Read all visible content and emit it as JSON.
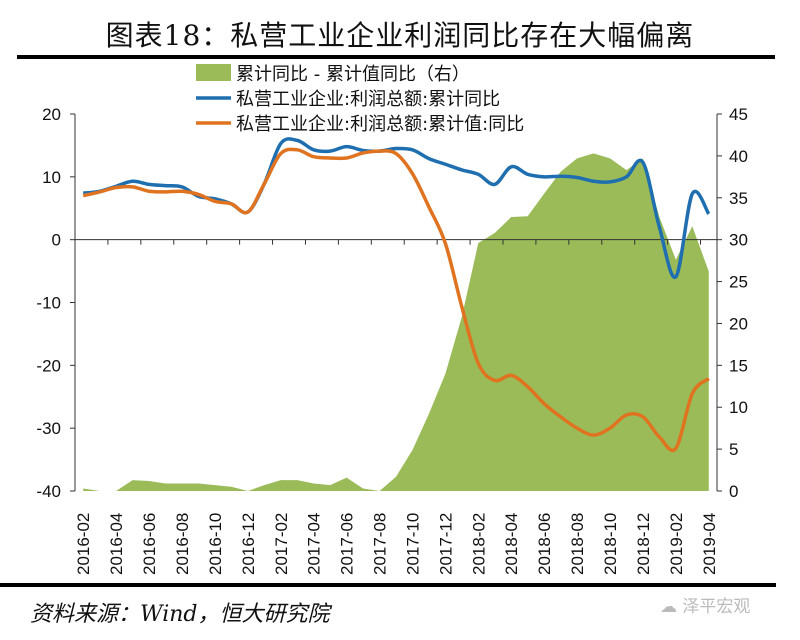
{
  "title": "图表18：私营工业企业利润同比存在大幅偏离",
  "source": "资料来源：Wind，恒大研究院",
  "watermark": "泽平宏观",
  "chart_data": {
    "type": "line",
    "title": "图表18：私营工业企业利润同比存在大幅偏离",
    "x_tick_labels": [
      "2016-02",
      "2016-04",
      "2016-06",
      "2016-08",
      "2016-10",
      "2016-12",
      "2017-02",
      "2017-04",
      "2017-06",
      "2017-08",
      "2017-10",
      "2017-12",
      "2018-02",
      "2018-04",
      "2018-06",
      "2018-08",
      "2018-10",
      "2018-12",
      "2019-02",
      "2019-04"
    ],
    "n_points": 39,
    "y_left": {
      "lim": [
        -40,
        20
      ],
      "ticks": [
        20,
        10,
        0,
        -10,
        -20,
        -30,
        -40
      ]
    },
    "y_right": {
      "lim": [
        0,
        45
      ],
      "ticks": [
        45,
        40,
        35,
        30,
        25,
        20,
        15,
        10,
        5,
        0
      ]
    },
    "colors": {
      "area": "#9bbb59",
      "blue": "#1f6fb0",
      "orange": "#e0731f"
    },
    "series": [
      {
        "name": "累计同比 - 累计值同比（右）",
        "type": "area",
        "axis": "right",
        "values": [
          0.3,
          0,
          0,
          1.3,
          1.2,
          0.9,
          0.9,
          0.9,
          0.7,
          0.5,
          0,
          0.7,
          1.3,
          1.3,
          0.9,
          0.7,
          1.6,
          0.3,
          0,
          1.7,
          4.9,
          9.2,
          14.0,
          20.8,
          29.6,
          30.8,
          32.7,
          32.8,
          35.5,
          38.1,
          39.7,
          40.3,
          39.7,
          38.3,
          39.7,
          32.7,
          27.6,
          31.6,
          26.2
        ]
      },
      {
        "name": "私营工业企业:利润总额:累计同比",
        "type": "line",
        "axis": "left",
        "values": [
          7.4,
          7.7,
          8.5,
          9.3,
          8.8,
          8.6,
          8.4,
          6.9,
          6.5,
          5.7,
          4.4,
          8.9,
          15.3,
          15.8,
          14.3,
          14.1,
          14.8,
          14.2,
          14.1,
          14.5,
          14.3,
          12.9,
          12.0,
          11.1,
          10.4,
          8.8,
          11.6,
          10.4,
          10.0,
          10.1,
          9.9,
          9.3,
          9.2,
          10.0,
          12.3,
          2.0,
          -5.9,
          7.3,
          4.1
        ]
      },
      {
        "name": "私营工业企业:利润总额:累计值:同比",
        "type": "line",
        "axis": "left",
        "values": [
          7.0,
          7.6,
          8.3,
          8.4,
          7.7,
          7.6,
          7.7,
          7.2,
          6.1,
          5.7,
          4.4,
          8.9,
          13.7,
          14.3,
          13.2,
          13.0,
          13.0,
          13.8,
          14.1,
          13.7,
          10.5,
          5.2,
          -0.6,
          -10.7,
          -19.7,
          -22.4,
          -21.6,
          -23.4,
          -26.1,
          -28.2,
          -30.0,
          -31.1,
          -30.0,
          -27.9,
          -28.2,
          -31.4,
          -33.2,
          -24.5,
          -22.1
        ]
      }
    ],
    "legend_position": "top-center",
    "grid": false
  }
}
